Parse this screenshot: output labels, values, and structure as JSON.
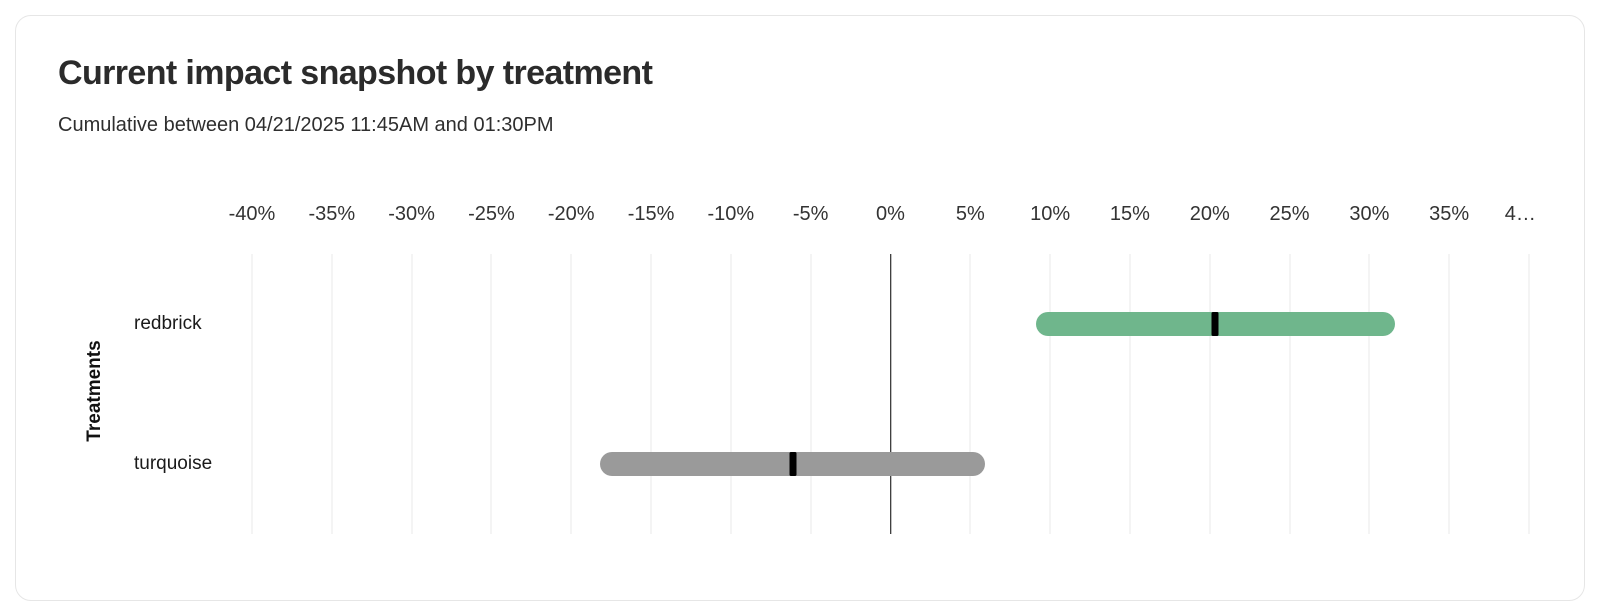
{
  "card": {
    "title": "Current impact snapshot by treatment",
    "subtitle": "Cumulative between 04/21/2025 11:45AM and 01:30PM"
  },
  "colors": {
    "card_border": "#e6e6e6",
    "gridline": "#e9e9e9",
    "zero_line": "#000000",
    "point_tick": "#000000",
    "title_text": "#2b2b2b",
    "axis_text": "#333333"
  },
  "chart_data": {
    "type": "bar",
    "orientation": "horizontal-range",
    "title": "Current impact snapshot by treatment",
    "subtitle": "Cumulative between 04/21/2025 11:45AM and 01:30PM",
    "xlabel": "",
    "ylabel": "Treatments",
    "xlim": [
      -40,
      40
    ],
    "x_ticks": [
      "-40%",
      "-35%",
      "-30%",
      "-25%",
      "-20%",
      "-15%",
      "-10%",
      "-5%",
      "0%",
      "5%",
      "10%",
      "15%",
      "20%",
      "25%",
      "30%",
      "35%",
      "4…"
    ],
    "grid": true,
    "zero_line": true,
    "categories": [
      "redbrick",
      "turquoise"
    ],
    "rows": [
      {
        "label": "redbrick",
        "low": 9.1,
        "high": 31.6,
        "point": 20.3,
        "color": "#6fb68c"
      },
      {
        "label": "turquoise",
        "low": -18.2,
        "high": 5.9,
        "point": -6.1,
        "color": "#9a9a9a"
      }
    ],
    "units": "percent"
  }
}
